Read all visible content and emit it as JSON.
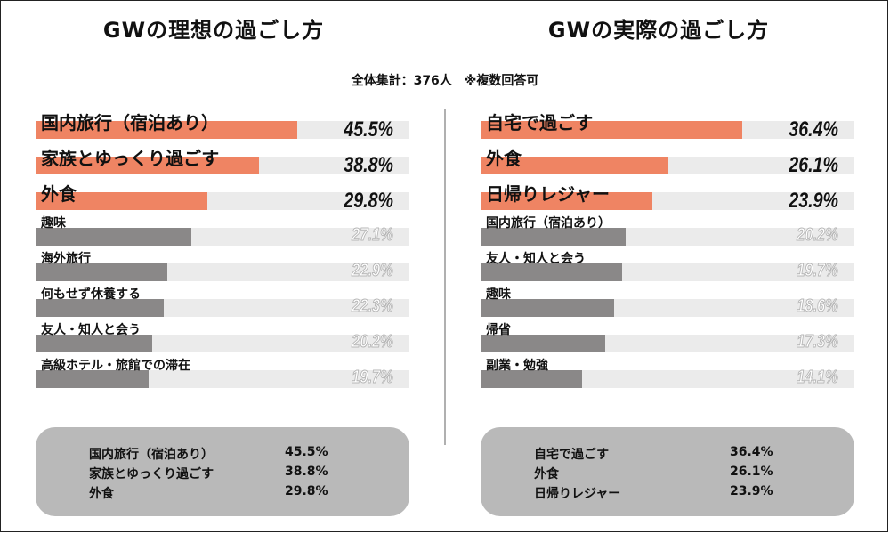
{
  "subtitle": "全体集計：376人　※複数回答可",
  "colors": {
    "highlight": "#ef8463",
    "normal": "#8a8888",
    "track": "#ebebeb"
  },
  "chart_data": [
    {
      "type": "bar",
      "title": "GWの理想の過ごし方",
      "categories": [
        "国内旅行（宿泊あり）",
        "家族とゆっくり過ごす",
        "外食",
        "趣味",
        "海外旅行",
        "何もせず休養する",
        "友人・知人と会う",
        "高級ホテル・旅館での滞在"
      ],
      "values": [
        45.5,
        38.8,
        29.8,
        27.1,
        22.9,
        22.3,
        20.2,
        19.7
      ],
      "value_labels": [
        "45.5%",
        "38.8%",
        "29.8%",
        "27.1%",
        "22.9%",
        "22.3%",
        "20.2%",
        "19.7%"
      ],
      "highlight_top": 3,
      "xlim": [
        0,
        65
      ],
      "summary": [
        {
          "label": "国内旅行（宿泊あり）",
          "value": "45.5%"
        },
        {
          "label": "家族とゆっくり過ごす",
          "value": "38.8%"
        },
        {
          "label": "外食",
          "value": "29.8%"
        }
      ]
    },
    {
      "type": "bar",
      "title": "GWの実際の過ごし方",
      "categories": [
        "自宅で過ごす",
        "外食",
        "日帰りレジャー",
        "国内旅行（宿泊あり）",
        "友人・知人と会う",
        "趣味",
        "帰省",
        "副業・勉強"
      ],
      "values": [
        36.4,
        26.1,
        23.9,
        20.2,
        19.7,
        18.6,
        17.3,
        14.1
      ],
      "value_labels": [
        "36.4%",
        "26.1%",
        "23.9%",
        "20.2%",
        "19.7%",
        "18.6%",
        "17.3%",
        "14.1%"
      ],
      "highlight_top": 3,
      "xlim": [
        0,
        52
      ],
      "summary": [
        {
          "label": "自宅で過ごす",
          "value": "36.4%"
        },
        {
          "label": "外食",
          "value": "26.1%"
        },
        {
          "label": "日帰りレジャー",
          "value": "23.9%"
        }
      ]
    }
  ]
}
